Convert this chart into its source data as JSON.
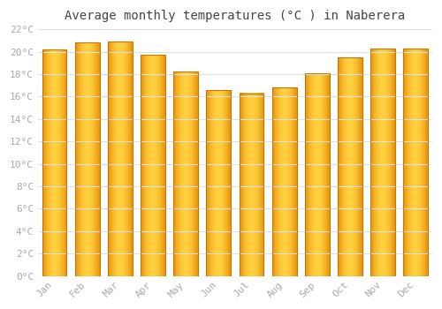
{
  "title": "Average monthly temperatures (°C ) in Naberera",
  "months": [
    "Jan",
    "Feb",
    "Mar",
    "Apr",
    "May",
    "Jun",
    "Jul",
    "Aug",
    "Sep",
    "Oct",
    "Nov",
    "Dec"
  ],
  "values": [
    20.2,
    20.8,
    20.9,
    19.7,
    18.2,
    16.6,
    16.3,
    16.8,
    18.1,
    19.5,
    20.3,
    20.3
  ],
  "bar_color_center": "#FFD040",
  "bar_color_edge": "#E8920A",
  "bar_border_color": "#C87800",
  "ylim": [
    0,
    22
  ],
  "ytick_step": 2,
  "background_color": "#ffffff",
  "grid_color": "#e0e0e0",
  "title_fontsize": 10,
  "tick_fontsize": 8,
  "font_family": "monospace",
  "tick_color": "#aaaaaa",
  "title_color": "#444444"
}
